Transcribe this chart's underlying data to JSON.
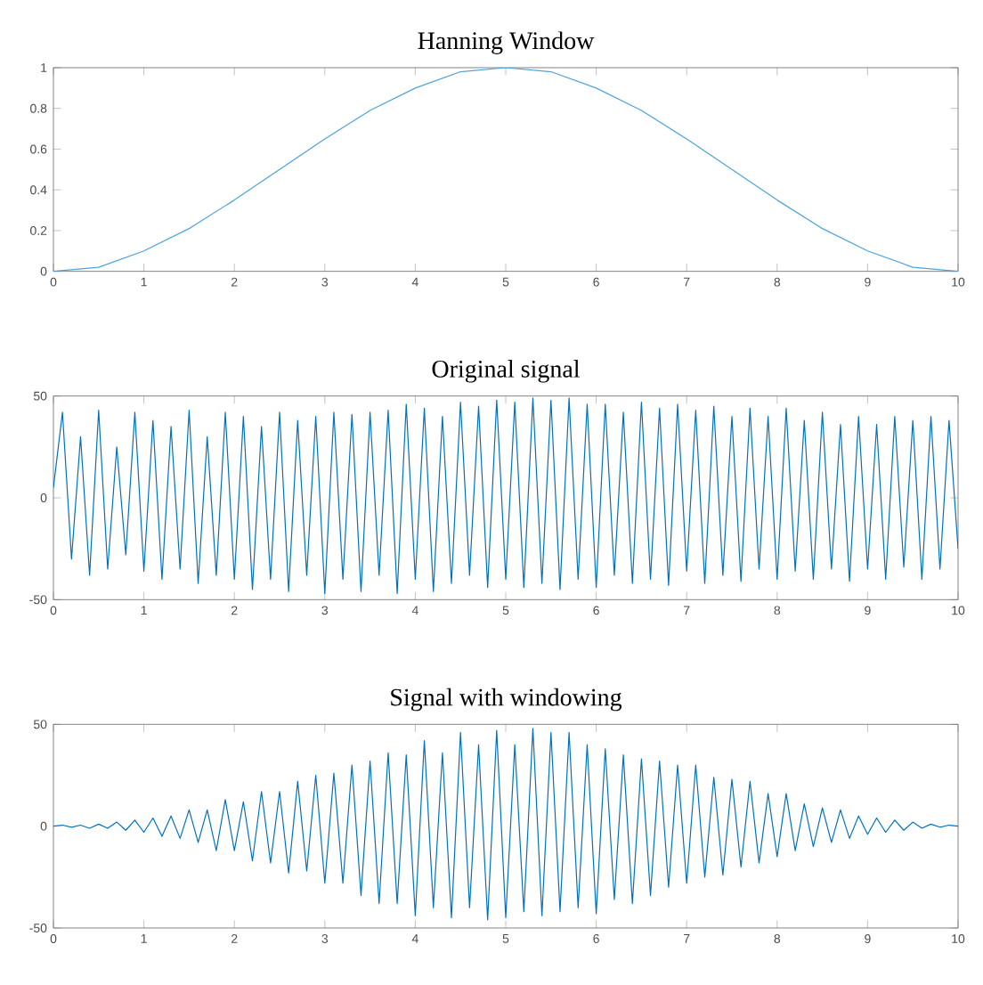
{
  "chart_data": [
    {
      "type": "line",
      "title": "Hanning Window",
      "xlim": [
        0,
        10
      ],
      "ylim": [
        0,
        1
      ],
      "xticks": [
        0,
        1,
        2,
        3,
        4,
        5,
        6,
        7,
        8,
        9,
        10
      ],
      "yticks": [
        0,
        0.2,
        0.4,
        0.6,
        0.8,
        1
      ],
      "x": [
        0,
        0.5,
        1,
        1.5,
        2,
        2.5,
        3,
        3.5,
        4,
        4.5,
        5,
        5.5,
        6,
        6.5,
        7,
        7.5,
        8,
        8.5,
        9,
        9.5,
        10
      ],
      "series": [
        {
          "color": "#4da3dc",
          "values": [
            0,
            0.02,
            0.1,
            0.21,
            0.35,
            0.5,
            0.65,
            0.79,
            0.9,
            0.98,
            1,
            0.98,
            0.9,
            0.79,
            0.65,
            0.5,
            0.35,
            0.21,
            0.1,
            0.02,
            0
          ]
        }
      ]
    },
    {
      "type": "line",
      "title": "Original signal",
      "xlim": [
        0,
        10
      ],
      "ylim": [
        -50,
        50
      ],
      "xticks": [
        0,
        1,
        2,
        3,
        4,
        5,
        6,
        7,
        8,
        9,
        10
      ],
      "yticks": [
        -50,
        0,
        50
      ],
      "x": [
        0,
        0.1,
        0.2,
        0.3,
        0.4,
        0.5,
        0.6,
        0.7,
        0.8,
        0.9,
        1,
        1.1,
        1.2,
        1.3,
        1.4,
        1.5,
        1.6,
        1.7,
        1.8,
        1.9,
        2,
        2.1,
        2.2,
        2.3,
        2.4,
        2.5,
        2.6,
        2.7,
        2.8,
        2.9,
        3,
        3.1,
        3.2,
        3.3,
        3.4,
        3.5,
        3.6,
        3.7,
        3.8,
        3.9,
        4,
        4.1,
        4.2,
        4.3,
        4.4,
        4.5,
        4.6,
        4.7,
        4.8,
        4.9,
        5,
        5.1,
        5.2,
        5.3,
        5.4,
        5.5,
        5.6,
        5.7,
        5.8,
        5.9,
        6,
        6.1,
        6.2,
        6.3,
        6.4,
        6.5,
        6.6,
        6.7,
        6.8,
        6.9,
        7,
        7.1,
        7.2,
        7.3,
        7.4,
        7.5,
        7.6,
        7.7,
        7.8,
        7.9,
        8,
        8.1,
        8.2,
        8.3,
        8.4,
        8.5,
        8.6,
        8.7,
        8.8,
        8.9,
        9,
        9.1,
        9.2,
        9.3,
        9.4,
        9.5,
        9.6,
        9.7,
        9.8,
        9.9,
        10
      ],
      "series": [
        {
          "color": "#0072bd",
          "values": [
            5,
            42,
            -30,
            30,
            -38,
            43,
            -35,
            25,
            -28,
            42,
            -36,
            38,
            -40,
            35,
            -35,
            43,
            -42,
            30,
            -38,
            42,
            -40,
            40,
            -45,
            35,
            -40,
            42,
            -46,
            38,
            -38,
            40,
            -47,
            42,
            -40,
            41,
            -46,
            42,
            -38,
            43,
            -47,
            46,
            -40,
            44,
            -46,
            40,
            -42,
            47,
            -38,
            45,
            -44,
            48,
            -40,
            47,
            -44,
            49,
            -42,
            48,
            -45,
            49,
            -40,
            46,
            -44,
            46,
            -38,
            42,
            -42,
            47,
            -40,
            44,
            -43,
            46,
            -36,
            43,
            -42,
            45,
            -38,
            40,
            -41,
            44,
            -35,
            40,
            -40,
            44,
            -36,
            38,
            -40,
            42,
            -35,
            36,
            -41,
            40,
            -35,
            36,
            -40,
            40,
            -34,
            38,
            -40,
            40,
            -35,
            38,
            -25
          ]
        }
      ]
    },
    {
      "type": "line",
      "title": "Signal with windowing",
      "xlim": [
        0,
        10
      ],
      "ylim": [
        -50,
        50
      ],
      "xticks": [
        0,
        1,
        2,
        3,
        4,
        5,
        6,
        7,
        8,
        9,
        10
      ],
      "yticks": [
        -50,
        0,
        50
      ],
      "x": [
        0,
        0.1,
        0.2,
        0.3,
        0.4,
        0.5,
        0.6,
        0.7,
        0.8,
        0.9,
        1,
        1.1,
        1.2,
        1.3,
        1.4,
        1.5,
        1.6,
        1.7,
        1.8,
        1.9,
        2,
        2.1,
        2.2,
        2.3,
        2.4,
        2.5,
        2.6,
        2.7,
        2.8,
        2.9,
        3,
        3.1,
        3.2,
        3.3,
        3.4,
        3.5,
        3.6,
        3.7,
        3.8,
        3.9,
        4,
        4.1,
        4.2,
        4.3,
        4.4,
        4.5,
        4.6,
        4.7,
        4.8,
        4.9,
        5,
        5.1,
        5.2,
        5.3,
        5.4,
        5.5,
        5.6,
        5.7,
        5.8,
        5.9,
        6,
        6.1,
        6.2,
        6.3,
        6.4,
        6.5,
        6.6,
        6.7,
        6.8,
        6.9,
        7,
        7.1,
        7.2,
        7.3,
        7.4,
        7.5,
        7.6,
        7.7,
        7.8,
        7.9,
        8,
        8.1,
        8.2,
        8.3,
        8.4,
        8.5,
        8.6,
        8.7,
        8.8,
        8.9,
        9,
        9.1,
        9.2,
        9.3,
        9.4,
        9.5,
        9.6,
        9.7,
        9.8,
        9.9,
        10
      ],
      "series": [
        {
          "color": "#0072bd",
          "values": [
            0,
            0.5,
            -0.5,
            0.5,
            -1,
            1,
            -1,
            2,
            -2,
            3,
            -3,
            4,
            -5,
            5,
            -6,
            8,
            -8,
            8,
            -12,
            13,
            -12,
            12,
            -17,
            17,
            -18,
            17,
            -23,
            22,
            -22,
            25,
            -28,
            26,
            -28,
            30,
            -34,
            32,
            -38,
            36,
            -38,
            35,
            -44,
            42,
            -40,
            36,
            -45,
            46,
            -40,
            40,
            -46,
            47,
            -45,
            40,
            -42,
            48,
            -44,
            46,
            -42,
            46,
            -40,
            40,
            -43,
            38,
            -36,
            35,
            -38,
            33,
            -34,
            32,
            -30,
            30,
            -28,
            30,
            -25,
            24,
            -24,
            23,
            -20,
            22,
            -18,
            16,
            -15,
            16,
            -12,
            11,
            -10,
            9,
            -8,
            8,
            -6,
            5,
            -4,
            4,
            -3,
            3,
            -2,
            2,
            -1,
            1,
            -0.5,
            0.5,
            0
          ]
        }
      ]
    }
  ]
}
